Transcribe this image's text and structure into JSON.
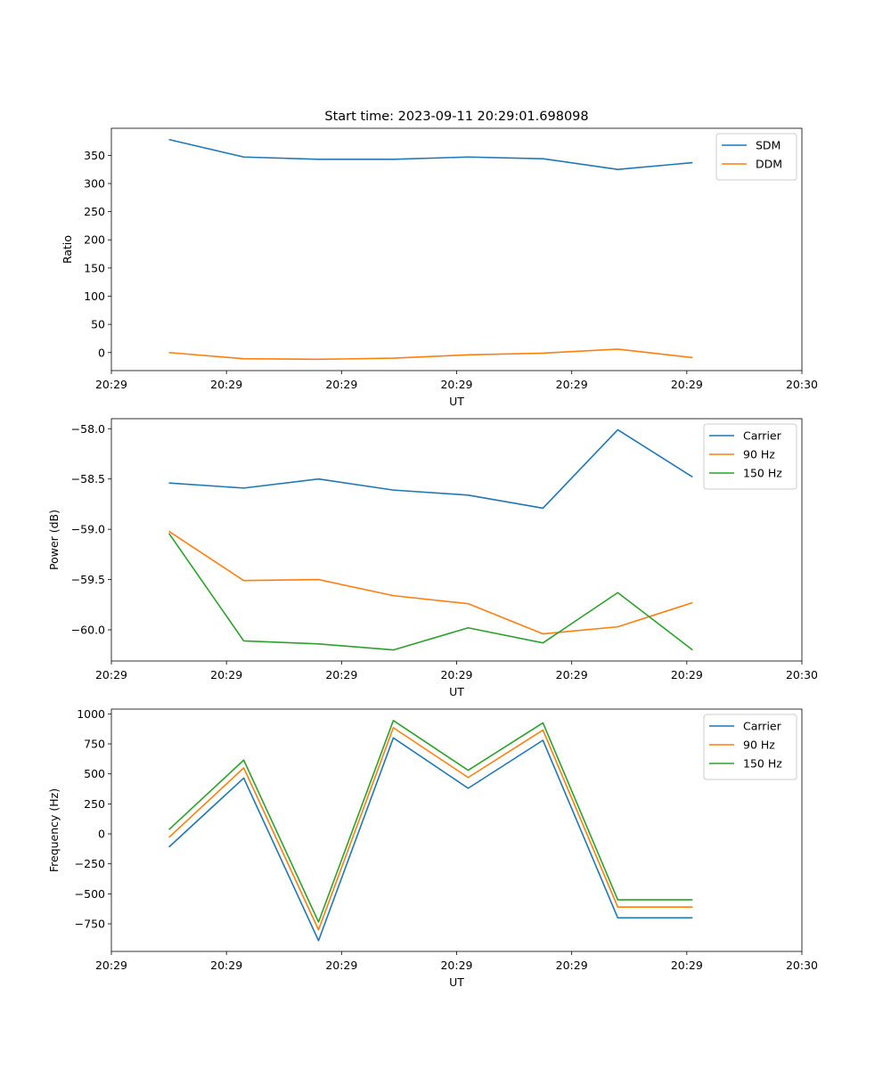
{
  "figure": {
    "title": "Start time: 2023-09-11 20:29:01.698098"
  },
  "chart_data": [
    {
      "type": "line",
      "title": "Start time: 2023-09-11 20:29:01.698098",
      "xlabel": "UT",
      "ylabel": "Ratio",
      "x": [
        0,
        1,
        2,
        3,
        4,
        5,
        6,
        7
      ],
      "xlim": [
        -0.5,
        5.5
      ],
      "xticks": [
        -0.5,
        0.5,
        1.5,
        2.5,
        3.5,
        4.5,
        5.5
      ],
      "xtick_labels": [
        "20:29",
        "20:29",
        "20:29",
        "20:29",
        "20:29",
        "20:29",
        "20:30"
      ],
      "ylim": [
        -32,
        398
      ],
      "yticks": [
        0,
        50,
        100,
        150,
        200,
        250,
        300,
        350
      ],
      "ytick_labels": [
        "0",
        "50",
        "100",
        "150",
        "200",
        "250",
        "300",
        "350"
      ],
      "legend": "top-right",
      "series": [
        {
          "name": "SDM",
          "color": "#1f77b4",
          "values": [
            378,
            347,
            343,
            343,
            347,
            344,
            325,
            337
          ]
        },
        {
          "name": "DDM",
          "color": "#ff7f0e",
          "values": [
            0,
            -11,
            -12,
            -10,
            -4,
            -1,
            6,
            -9
          ]
        }
      ]
    },
    {
      "type": "line",
      "title": "",
      "xlabel": "UT",
      "ylabel": "Power (dB)",
      "x": [
        0,
        1,
        2,
        3,
        4,
        5,
        6,
        7
      ],
      "xlim": [
        -0.5,
        5.5
      ],
      "xticks": [
        -0.5,
        0.5,
        1.5,
        2.5,
        3.5,
        4.5,
        5.5
      ],
      "xtick_labels": [
        "20:29",
        "20:29",
        "20:29",
        "20:29",
        "20:29",
        "20:29",
        "20:30"
      ],
      "ylim": [
        -60.31,
        -57.9
      ],
      "yticks": [
        -60.0,
        -59.5,
        -59.0,
        -58.5,
        -58.0
      ],
      "ytick_labels": [
        "−60.0",
        "−59.5",
        "−59.0",
        "−58.5",
        "−58.0"
      ],
      "legend": "top-right",
      "series": [
        {
          "name": "Carrier",
          "color": "#1f77b4",
          "values": [
            -58.54,
            -58.59,
            -58.5,
            -58.61,
            -58.66,
            -58.79,
            -58.01,
            -58.48
          ]
        },
        {
          "name": "90 Hz",
          "color": "#ff7f0e",
          "values": [
            -59.02,
            -59.51,
            -59.5,
            -59.66,
            -59.74,
            -60.04,
            -59.97,
            -59.73
          ]
        },
        {
          "name": "150 Hz",
          "color": "#2ca02c",
          "values": [
            -59.04,
            -60.11,
            -60.14,
            -60.2,
            -59.98,
            -60.13,
            -59.63,
            -60.2
          ]
        }
      ]
    },
    {
      "type": "line",
      "title": "",
      "xlabel": "UT",
      "ylabel": "Frequency (Hz)",
      "x": [
        0,
        1,
        2,
        3,
        4,
        5,
        6,
        7
      ],
      "xlim": [
        -0.5,
        5.5
      ],
      "xticks": [
        -0.5,
        0.5,
        1.5,
        2.5,
        3.5,
        4.5,
        5.5
      ],
      "xtick_labels": [
        "20:29",
        "20:29",
        "20:29",
        "20:29",
        "20:29",
        "20:29",
        "20:30"
      ],
      "ylim": [
        -980,
        1040
      ],
      "yticks": [
        -750,
        -500,
        -250,
        0,
        250,
        500,
        750,
        1000
      ],
      "ytick_labels": [
        "−750",
        "−500",
        "−250",
        "0",
        "250",
        "500",
        "750",
        "1000"
      ],
      "legend": "top-right",
      "series": [
        {
          "name": "Carrier",
          "color": "#1f77b4",
          "values": [
            -110,
            465,
            -890,
            800,
            380,
            780,
            -700,
            -700
          ]
        },
        {
          "name": "90 Hz",
          "color": "#ff7f0e",
          "values": [
            -30,
            550,
            -800,
            885,
            470,
            865,
            -610,
            -610
          ]
        },
        {
          "name": "150 Hz",
          "color": "#2ca02c",
          "values": [
            35,
            615,
            -735,
            945,
            530,
            925,
            -550,
            -550
          ]
        }
      ]
    }
  ]
}
